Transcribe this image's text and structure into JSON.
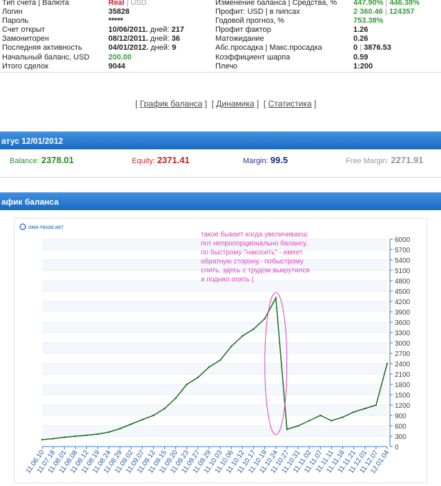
{
  "account": {
    "left": [
      {
        "label": "Тип счета | Валюта",
        "value": "Real",
        "value2": "USD"
      },
      {
        "label": "Логин",
        "value": "35828"
      },
      {
        "label": "Пароль",
        "value": "*****"
      },
      {
        "label": "Счет открыт",
        "value": "10/06/2011.",
        "suffix": "дней:",
        "days": "217"
      },
      {
        "label": "Замониторен",
        "value": "08/12/2011.",
        "suffix": "дней:",
        "days": "36"
      },
      {
        "label": "Последняя активность",
        "value": "04/01/2012.",
        "suffix": "дней:",
        "days": "9"
      },
      {
        "label": "Начальный баланс, USD",
        "value": "200.00"
      },
      {
        "label": "Итого сделок",
        "value": "9044"
      }
    ],
    "right": [
      {
        "label": "Изменение баланса | Средства, %",
        "value": "447.90%",
        "value2": "446.38%"
      },
      {
        "label": "Профит: USD | в пипсах",
        "value": "2 360.46",
        "value2": "124357"
      },
      {
        "label": "Годовой прогноз, %",
        "value": "753.38%"
      },
      {
        "label": "Профит фактор",
        "value": "1.26"
      },
      {
        "label": "Матожидание",
        "value": "0.26"
      },
      {
        "label": "Абс.просадка | Макс.просадка",
        "value": "0",
        "value2": "3876.53"
      },
      {
        "label": "Коэффициент шарпа",
        "value": "0.59"
      },
      {
        "label": "Плечо",
        "value": "1:200"
      }
    ]
  },
  "links": {
    "balance_chart": "График баланса",
    "dynamics": "Динамика",
    "statistics": "Статистика"
  },
  "status": {
    "title": "атус 12/01/2012",
    "balance_label": "Balance:",
    "balance": "2378.01",
    "equity_label": "Equity:",
    "equity": "2371.41",
    "margin_label": "Margin:",
    "margin": "99.5",
    "free_margin_label": "Free Margin:",
    "free_margin": "2271.91"
  },
  "chart_section_title": "афик баланса",
  "chart_data": {
    "type": "line",
    "logo": "ONIX-TRADE.NET",
    "annotation": [
      "такое бывает когда увеличиваеш",
      "пот непропорционально балансу.",
      "по быстрому \"накосить\" - имеет",
      "обратную сторону,- побыстрому",
      "слить. здесь с трудом выкрутился",
      "и поднял опять ("
    ],
    "ylim": [
      0,
      6000
    ],
    "yticks": [
      "0",
      "300",
      "600",
      "900",
      "1200",
      "1500",
      "1800",
      "2100",
      "2400",
      "2700",
      "3000",
      "3300",
      "3600",
      "3900",
      "4200",
      "4500",
      "4800",
      "5100",
      "5400",
      "5700",
      "6000"
    ],
    "categories": [
      "11.06.10",
      "11.07.18",
      "11.08.01",
      "11.08.08",
      "11.08.12",
      "11.08.19",
      "11.08.24",
      "11.08.29",
      "11.09.02",
      "11.09.07",
      "11.09.12",
      "11.09.15",
      "11.09.20",
      "11.09.23",
      "11.09.27",
      "11.09.29",
      "11.10.03",
      "11.10.06",
      "11.10.12",
      "11.10.17",
      "11.10.19",
      "11.10.24",
      "11.10.27",
      "11.10.31",
      "11.11.02",
      "11.11.07",
      "11.11.11",
      "11.11.16",
      "11.11.21",
      "11.12.01",
      "11.12.07",
      "12.01.04"
    ],
    "series": [
      {
        "values": [
          200,
          230,
          270,
          300,
          330,
          360,
          420,
          520,
          650,
          780,
          900,
          1100,
          1400,
          1800,
          2000,
          2300,
          2500,
          2900,
          3200,
          3400,
          3700,
          4300,
          500,
          600,
          750,
          900,
          750,
          850,
          1000,
          1100,
          1200,
          2400
        ]
      }
    ],
    "colors": {
      "line": "#1a6b1a",
      "accent": "#e040c0",
      "axis": "#3a7ac8"
    }
  }
}
